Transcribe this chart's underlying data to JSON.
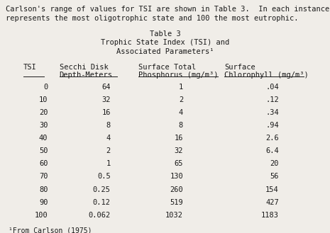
{
  "intro1": "Carlson's range of values for TSI are shown in Table 3.  In each instance 0",
  "intro2": "represents the most oligotrophic state and 100 the most eutrophic.",
  "title1": "Table 3",
  "title2": "Trophic State Index (TSI) and",
  "title3": "Associated Parameters¹",
  "hdr_tsi": "TSI",
  "hdr_secchi1": "Secchi Disk",
  "hdr_secchi2": "Depth-Meters",
  "hdr_phos1": "Surface Total",
  "hdr_phos2": "Phosphorus (mg/m³)",
  "hdr_chlo1": "Surface",
  "hdr_chlo2": "Chlorophyll (mg/m³)",
  "tsi": [
    "0",
    "10",
    "20",
    "30",
    "40",
    "50",
    "60",
    "70",
    "80",
    "90",
    "100"
  ],
  "secchi": [
    "64",
    "32",
    "16",
    "8",
    "4",
    "2",
    "1",
    "0.5",
    "0.25",
    "0.12",
    "0.062"
  ],
  "phosphorus": [
    "1",
    "2",
    "4",
    "8",
    "16",
    "32",
    "65",
    "130",
    "260",
    "519",
    "1032"
  ],
  "chlorophyll": [
    ".04",
    ".12",
    ".34",
    ".94",
    "2.6",
    "6.4",
    "20",
    "56",
    "154",
    "427",
    "1183"
  ],
  "footnote": "¹From Carlson (1975)",
  "bg_color": "#f0ede8",
  "text_color": "#1a1a1a",
  "font_size": 7.5
}
